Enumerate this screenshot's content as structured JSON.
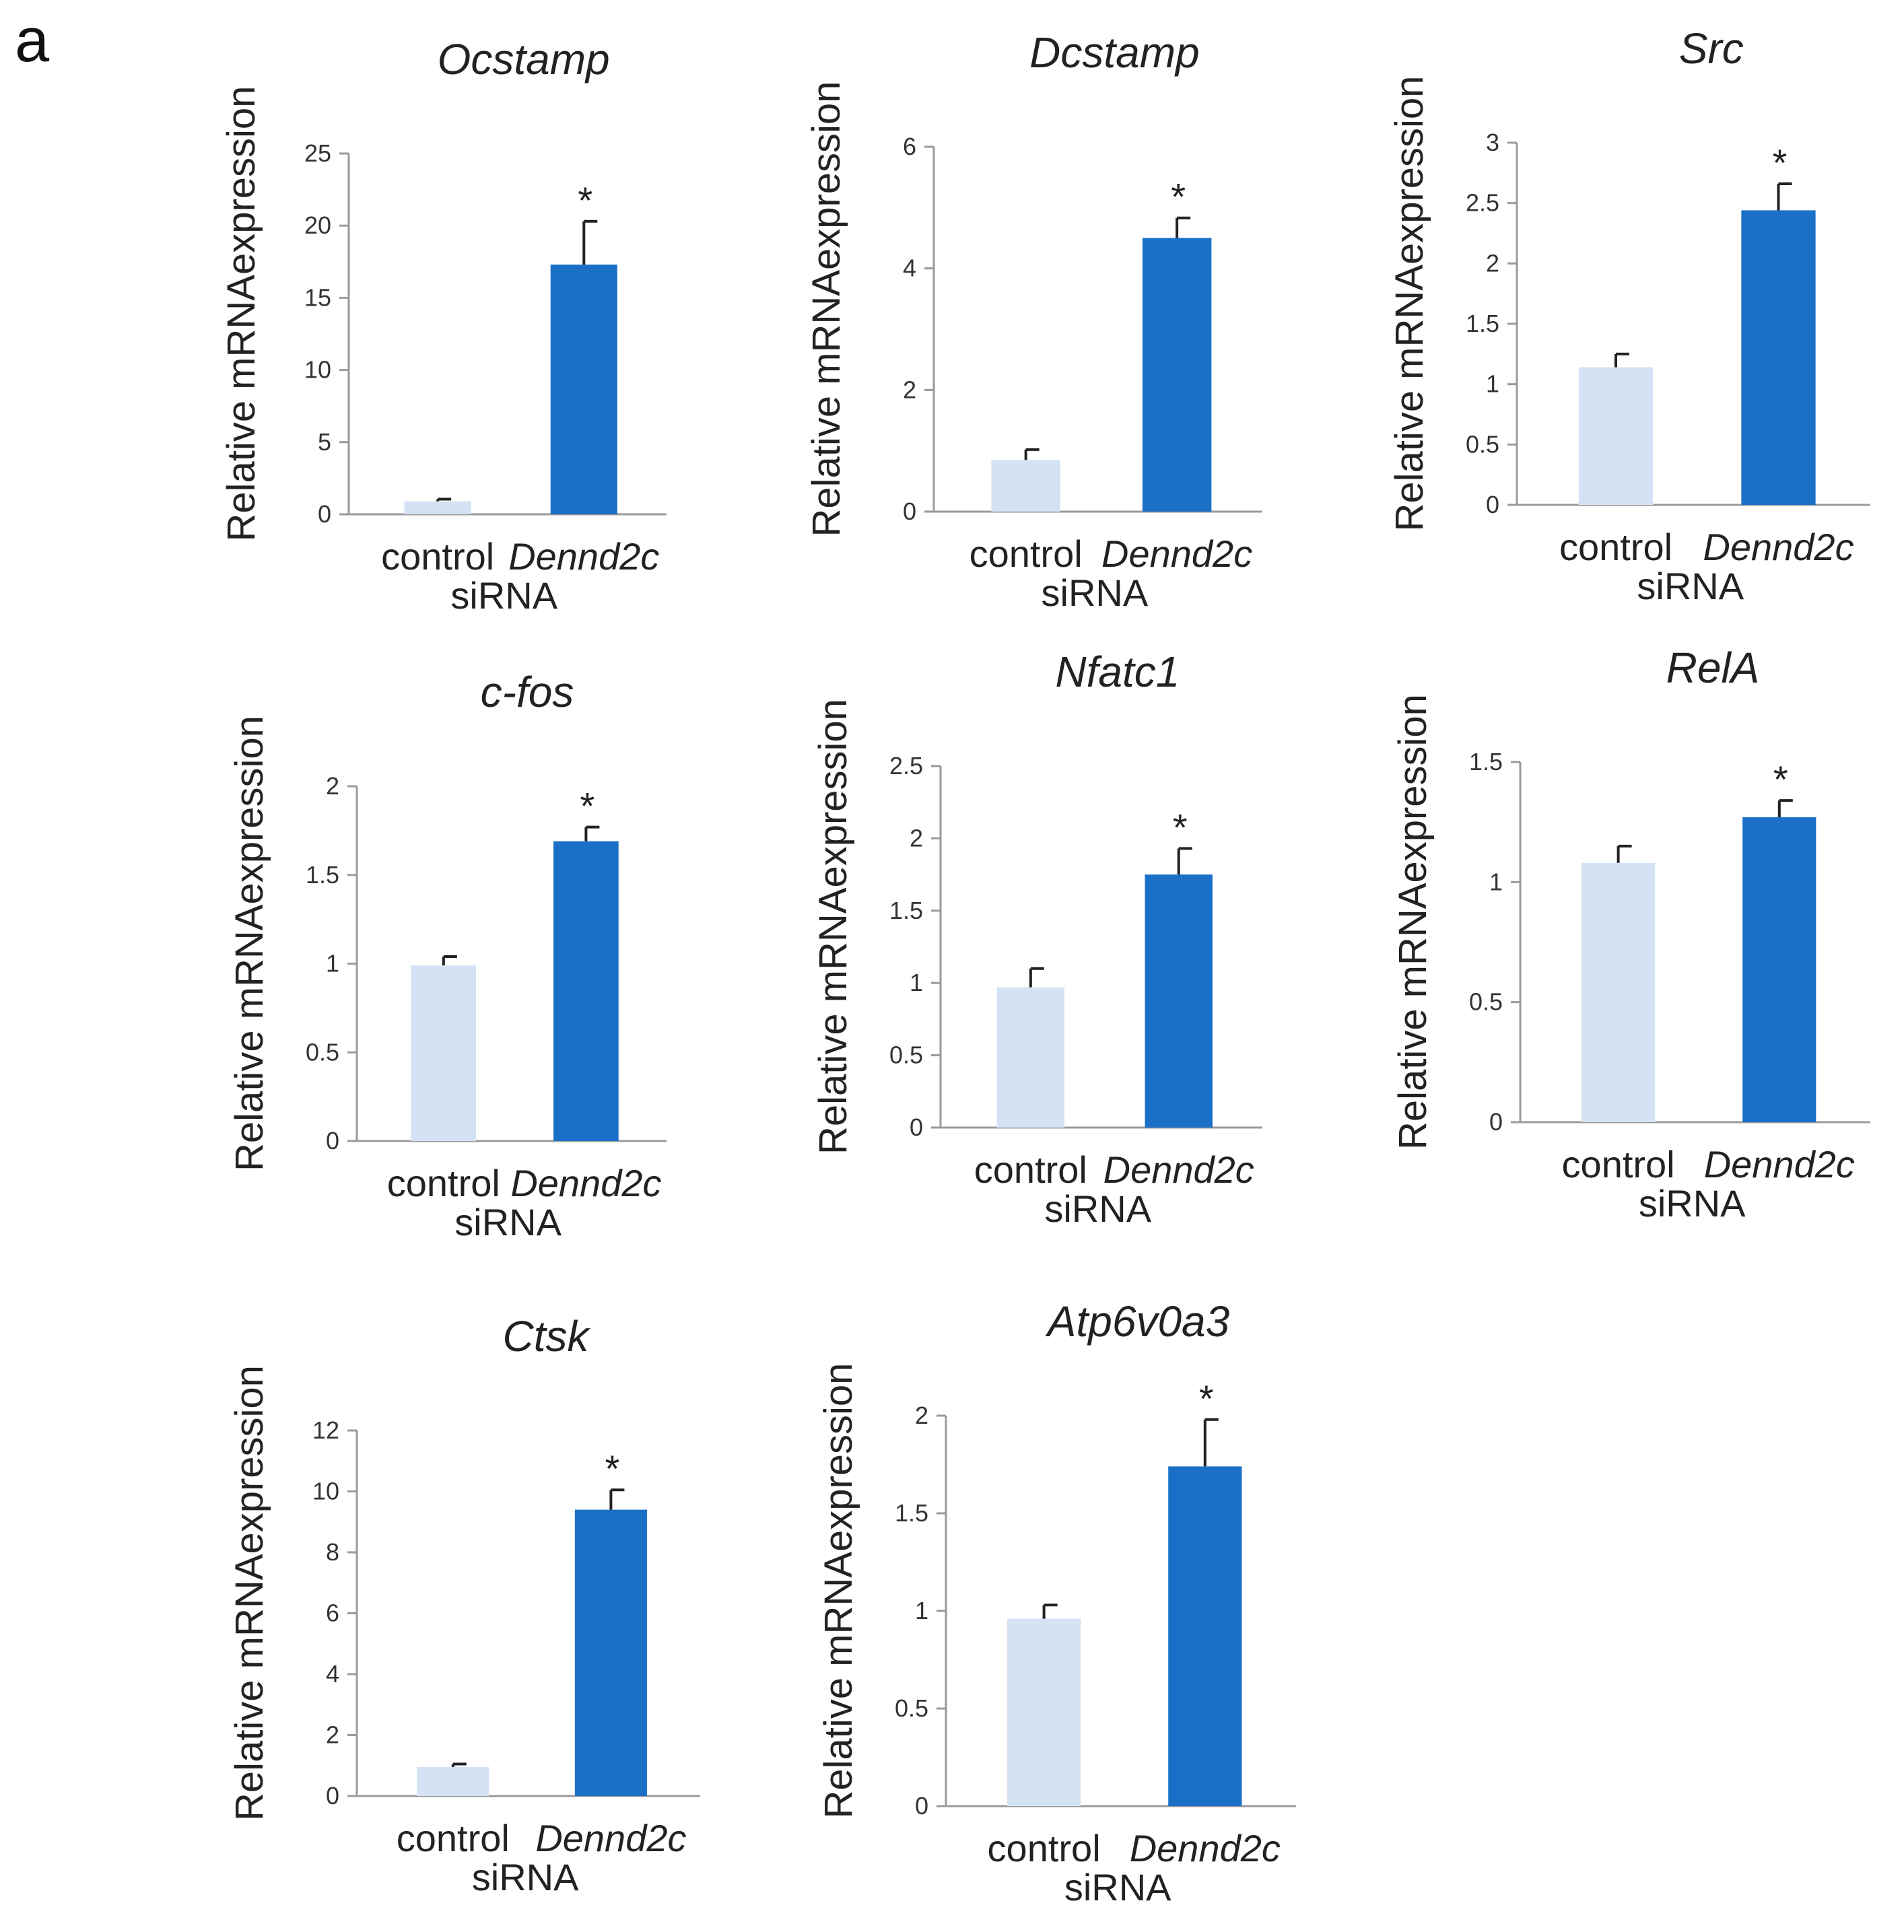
{
  "panel_label": "a",
  "colors": {
    "control": "#d4e3f4",
    "treatment": "#1a6fc6",
    "axis": "#9a9a9a"
  },
  "chart_data": [
    {
      "type": "bar",
      "title": "Ocstamp",
      "ylabel": "Relative mRNAexpression",
      "xlabel": "siRNA",
      "categories": [
        "control",
        "Dennd2c"
      ],
      "values": [
        0.9,
        17.3
      ],
      "errors": [
        0.15,
        3.0
      ],
      "significance": [
        "",
        "*"
      ],
      "yticks": [
        0,
        5,
        10,
        15,
        20,
        25
      ],
      "ylim": [
        0,
        25
      ]
    },
    {
      "type": "bar",
      "title": "Dcstamp",
      "ylabel": "Relative mRNAexpression",
      "xlabel": "siRNA",
      "categories": [
        "control",
        "Dennd2c"
      ],
      "values": [
        0.85,
        4.5
      ],
      "errors": [
        0.17,
        0.33
      ],
      "significance": [
        "",
        "*"
      ],
      "yticks": [
        0,
        2,
        4,
        6
      ],
      "ylim": [
        0,
        6
      ]
    },
    {
      "type": "bar",
      "title": "Src",
      "ylabel": "Relative mRNAexpression",
      "xlabel": "siRNA",
      "categories": [
        "control",
        "Dennd2c"
      ],
      "values": [
        1.14,
        2.44
      ],
      "errors": [
        0.11,
        0.22
      ],
      "significance": [
        "",
        "*"
      ],
      "yticks": [
        0,
        0.5,
        1,
        1.5,
        2,
        2.5,
        3
      ],
      "ylim": [
        0,
        3
      ]
    },
    {
      "type": "bar",
      "title": "c-fos",
      "ylabel": "Relative mRNAexpression",
      "xlabel": "siRNA",
      "categories": [
        "control",
        "Dennd2c"
      ],
      "values": [
        0.99,
        1.69
      ],
      "errors": [
        0.05,
        0.08
      ],
      "significance": [
        "",
        "*"
      ],
      "yticks": [
        0,
        0.5,
        1,
        1.5,
        2
      ],
      "ylim": [
        0,
        2
      ]
    },
    {
      "type": "bar",
      "title": "Nfatc1",
      "ylabel": "Relative mRNAexpression",
      "xlabel": "siRNA",
      "categories": [
        "control",
        "Dennd2c"
      ],
      "values": [
        0.97,
        1.75
      ],
      "errors": [
        0.13,
        0.18
      ],
      "significance": [
        "",
        "*"
      ],
      "yticks": [
        0,
        0.5,
        1,
        1.5,
        2,
        2.5
      ],
      "ylim": [
        0,
        2.5
      ]
    },
    {
      "type": "bar",
      "title": "RelA",
      "ylabel": "Relative mRNAexpression",
      "xlabel": "siRNA",
      "categories": [
        "control",
        "Dennd2c"
      ],
      "values": [
        1.08,
        1.27
      ],
      "errors": [
        0.07,
        0.07
      ],
      "significance": [
        "",
        "*"
      ],
      "yticks": [
        0,
        0.5,
        1,
        1.5
      ],
      "ylim": [
        0,
        1.5
      ]
    },
    {
      "type": "bar",
      "title": "Ctsk",
      "ylabel": "Relative mRNAexpression",
      "xlabel": "siRNA",
      "categories": [
        "control",
        "Dennd2c"
      ],
      "values": [
        0.95,
        9.4
      ],
      "errors": [
        0.1,
        0.65
      ],
      "significance": [
        "",
        "*"
      ],
      "yticks": [
        0,
        2,
        4,
        6,
        8,
        10,
        12
      ],
      "ylim": [
        0,
        12
      ]
    },
    {
      "type": "bar",
      "title": "Atp6v0a3",
      "ylabel": "Relative mRNAexpression",
      "xlabel": "siRNA",
      "categories": [
        "control",
        "Dennd2c"
      ],
      "values": [
        0.96,
        1.74
      ],
      "errors": [
        0.07,
        0.24
      ],
      "significance": [
        "",
        "*"
      ],
      "yticks": [
        0,
        0.5,
        1,
        1.5,
        2
      ],
      "ylim": [
        0,
        2
      ]
    }
  ]
}
